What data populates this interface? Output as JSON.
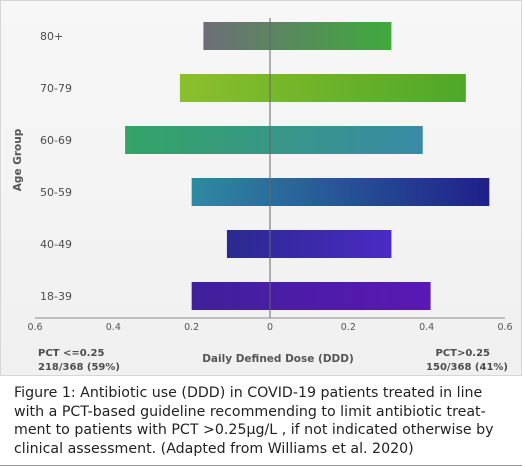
{
  "chart_data": {
    "type": "bar",
    "orientation": "horizontal",
    "categories": [
      "80+",
      "70-79",
      "60-69",
      "50-59",
      "40-49",
      "18-39"
    ],
    "series": [
      {
        "values_left": [
          0.17,
          0.23,
          0.37,
          0.2,
          0.11,
          0.2
        ],
        "values_right": [
          0.31,
          0.5,
          0.39,
          0.56,
          0.31,
          0.41
        ]
      }
    ],
    "bar_colors": [
      [
        "#6e6e78",
        "#3faa3c"
      ],
      [
        "#8cbf2c",
        "#4ea828"
      ],
      [
        "#34a466",
        "#3a8aa6"
      ],
      [
        "#2f8aa2",
        "#1f1f8a"
      ],
      [
        "#2a2a8e",
        "#4a2ac4"
      ],
      [
        "#40209a",
        "#5a18b4"
      ]
    ],
    "xlim": [
      -0.6,
      0.6
    ],
    "x_ticks": [
      -0.6,
      -0.4,
      -0.2,
      0,
      0.2,
      0.4,
      0.6
    ],
    "x_tick_labels": [
      "0.6",
      "0.4",
      "0.2",
      "0",
      "0.2",
      "0.4",
      "0.6"
    ],
    "xlabel": "Daily Defined Dose (DDD)",
    "ylabel": "Age Group",
    "left_group": {
      "line1": "PCT <=0.25",
      "line2": "218/368 (59%)"
    },
    "right_group": {
      "line1": "PCT>0.25",
      "line2": "150/368 (41%)"
    },
    "grid": false
  },
  "caption": "Figure 1: Antibiotic use (DDD) in COVID-19 patients treated in line with a PCT-based guideline recommending to limit  antibiotic treat-ment to patients with PCT >0.25µg/L , if not indicated otherwise by clinical assessment. (Adapted from Williams et al. 2020)",
  "colors": {
    "panel_background": "#f3f3f3",
    "center_line": "#666666"
  }
}
